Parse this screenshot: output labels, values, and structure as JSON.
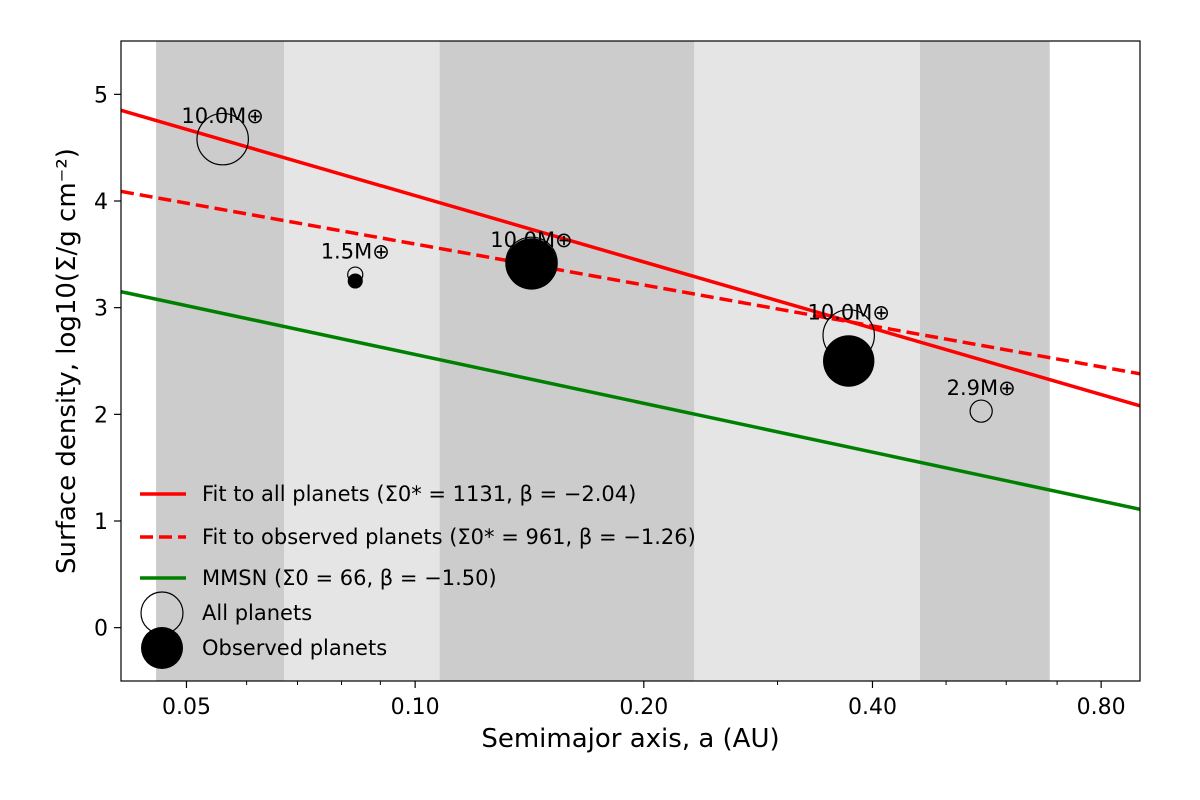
{
  "chart_data": {
    "type": "scatter",
    "xlabel": "Semimajor axis, a (AU)",
    "ylabel": "Surface density, log10(Σ/g cm⁻²)",
    "x_scale": "log",
    "xlim": [
      0.041,
      0.9
    ],
    "ylim": [
      -0.5,
      5.5
    ],
    "x_ticks": [
      0.05,
      0.1,
      0.2,
      0.4,
      0.8
    ],
    "x_tick_labels": [
      "0.05",
      "0.10",
      "0.20",
      "0.40",
      "0.80"
    ],
    "y_ticks": [
      0,
      1,
      2,
      3,
      4,
      5
    ],
    "y_tick_labels": [
      "0",
      "1",
      "2",
      "3",
      "4",
      "5"
    ],
    "grid": false,
    "bands": [
      {
        "x0": 0.0456,
        "x1": 0.0672,
        "shade": "dark"
      },
      {
        "x0": 0.0672,
        "x1": 0.1077,
        "shade": "light"
      },
      {
        "x0": 0.1077,
        "x1": 0.2331,
        "shade": "dark"
      },
      {
        "x0": 0.2331,
        "x1": 0.4619,
        "shade": "light"
      },
      {
        "x0": 0.4619,
        "x1": 0.6845,
        "shade": "dark"
      }
    ],
    "lines": [
      {
        "id": "fit-all",
        "label": "Fit to all planets (Σ0* = 1131, β = −2.04)",
        "color": "#ff0000",
        "dash": "solid",
        "x": [
          0.041,
          0.9
        ],
        "y": [
          4.85,
          2.08
        ]
      },
      {
        "id": "fit-observed",
        "label": "Fit to observed planets (Σ0* = 961, β = −1.26)",
        "color": "#ff0000",
        "dash": "dashed",
        "x": [
          0.041,
          0.9
        ],
        "y": [
          4.09,
          2.38
        ]
      },
      {
        "id": "mmsn",
        "label": "MMSN (Σ0 = 66, β = −1.50)",
        "color": "#008000",
        "dash": "solid",
        "x": [
          0.041,
          0.9
        ],
        "y": [
          3.15,
          1.11
        ]
      }
    ],
    "all_planets": [
      {
        "x": 0.0558,
        "y": 4.58,
        "mass": 10.0,
        "label": "10.0M⊕"
      },
      {
        "x": 0.0834,
        "y": 3.31,
        "mass": 1.5,
        "label": "1.5M⊕"
      },
      {
        "x": 0.1423,
        "y": 3.42,
        "mass": 10.0,
        "label": "10.0M⊕"
      },
      {
        "x": 0.3722,
        "y": 2.74,
        "mass": 10.0,
        "label": "10.0M⊕"
      },
      {
        "x": 0.5561,
        "y": 2.03,
        "mass": 2.9,
        "label": "2.9M⊕"
      }
    ],
    "observed_planets": [
      {
        "x": 0.0834,
        "y": 3.25,
        "mass": 1.5
      },
      {
        "x": 0.1423,
        "y": 3.41,
        "mass": 10.0
      },
      {
        "x": 0.3722,
        "y": 2.5,
        "mass": 10.0
      }
    ],
    "legend": {
      "placement": "lower-left",
      "entries": [
        {
          "type": "line",
          "ref": "fit-all",
          "text": "Fit to all planets (Σ0* = 1131, β = −2.04)"
        },
        {
          "type": "line",
          "ref": "fit-observed",
          "text": "Fit to observed planets (Σ0* = 961, β = −1.26)"
        },
        {
          "type": "line",
          "ref": "mmsn",
          "text": "MMSN (Σ0 = 66, β = −1.50)"
        },
        {
          "type": "open-circle",
          "text": "All planets"
        },
        {
          "type": "filled-circle",
          "text": "Observed planets"
        }
      ]
    },
    "colors": {
      "band_dark": "#cccccc",
      "band_light": "#e5e5e5",
      "red": "#ff0000",
      "green": "#008000"
    }
  }
}
